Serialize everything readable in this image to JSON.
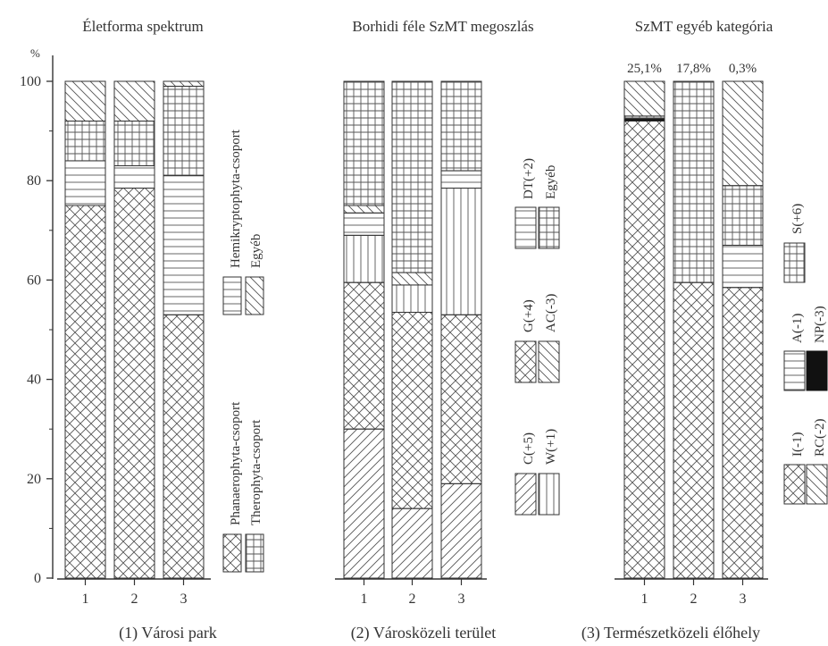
{
  "chart_data": {
    "type": "stacked-bar",
    "unit": "%",
    "ylim": [
      0,
      100
    ],
    "yticks": [
      0,
      20,
      40,
      60,
      80,
      100
    ],
    "categories": [
      "1",
      "2",
      "3"
    ],
    "category_captions": [
      "(1) Városi park",
      "(2) Városközeli terület",
      "(3) Természetközeli élőhely"
    ],
    "panels": [
      {
        "title": "Életforma spektrum",
        "series": [
          {
            "name": "Phanaerophyta-csoport",
            "pattern": "crosshatch",
            "values": [
              75,
              78.5,
              53
            ]
          },
          {
            "name": "Hemikryptophyta-csoport",
            "pattern": "horizontal",
            "values": [
              9,
              4.5,
              28
            ]
          },
          {
            "name": "Therophyta-csoport",
            "pattern": "grid",
            "values": [
              8,
              9,
              18
            ]
          },
          {
            "name": "Egyéb",
            "pattern": "diagonal-down",
            "values": [
              8,
              8,
              1
            ]
          }
        ]
      },
      {
        "title": "Borhidi féle SzMT megoszlás",
        "series": [
          {
            "name": "C(+5)",
            "pattern": "diagonal-up",
            "values": [
              30,
              14,
              19
            ]
          },
          {
            "name": "G(+4)",
            "pattern": "crosshatch",
            "values": [
              29.5,
              39.5,
              34
            ]
          },
          {
            "name": "W(+1)",
            "pattern": "vertical",
            "values": [
              9.5,
              5.5,
              25.5
            ]
          },
          {
            "name": "AC(-3)",
            "pattern": "diagonal-down",
            "values": [
              1.5,
              2.5,
              0
            ]
          },
          {
            "name": "DT(+2)",
            "pattern": "horizontal",
            "values": [
              4.5,
              0,
              3.5
            ]
          },
          {
            "name": "Egyéb",
            "pattern": "grid",
            "values": [
              25,
              38.5,
              18
            ]
          }
        ],
        "series_order": [
          "C(+5)",
          "G(+4)",
          "W(+1)",
          "DT(+2)",
          "AC(-3)",
          "Egyéb"
        ]
      },
      {
        "title": "SzMT egyéb kategória",
        "top_labels": [
          "25,1%",
          "17,8%",
          "0,3%"
        ],
        "series": [
          {
            "name": "I(-1)",
            "pattern": "crosshatch",
            "values": [
              92,
              59.5,
              58.5
            ]
          },
          {
            "name": "NP(-3)",
            "pattern": "black",
            "values": [
              0.5,
              0,
              0
            ]
          },
          {
            "name": "A(-1)",
            "pattern": "horizontal",
            "values": [
              0,
              0,
              8.5
            ]
          },
          {
            "name": "RC(-2)",
            "pattern": "diagonal-down",
            "values": [
              7,
              0,
              21
            ]
          },
          {
            "name": "S(+6)",
            "pattern": "grid",
            "values": [
              0.5,
              40.5,
              12
            ]
          }
        ],
        "series_order": [
          "I(-1)",
          "NP(-3)",
          "A(-1)",
          "S(+6)",
          "RC(-2)"
        ]
      }
    ]
  },
  "legends": {
    "panel1": {
      "upper": {
        "left": "Hemikryptophyta-csoport",
        "right": "Egyéb"
      },
      "lower": {
        "left": "Phanaerophyta-csoport",
        "right": "Therophyta-csoport"
      }
    },
    "panel2": {
      "top": {
        "left": "DT(+2)",
        "right": "Egyéb"
      },
      "middle": {
        "left": "G(+4)",
        "right": "AC(-3)"
      },
      "bottom": {
        "left": "C(+5)",
        "right": "W(+1)"
      }
    },
    "panel3": {
      "top": {
        "left": "S(+6)"
      },
      "middle": {
        "left": "A(-1)",
        "right": "NP(-3)"
      },
      "bottom": {
        "left": "I(-1)",
        "right": "RC(-2)"
      }
    }
  },
  "y_unit_label": "%",
  "colors": {
    "ink": "#333333",
    "black_fill": "#111111",
    "background": "#ffffff"
  }
}
